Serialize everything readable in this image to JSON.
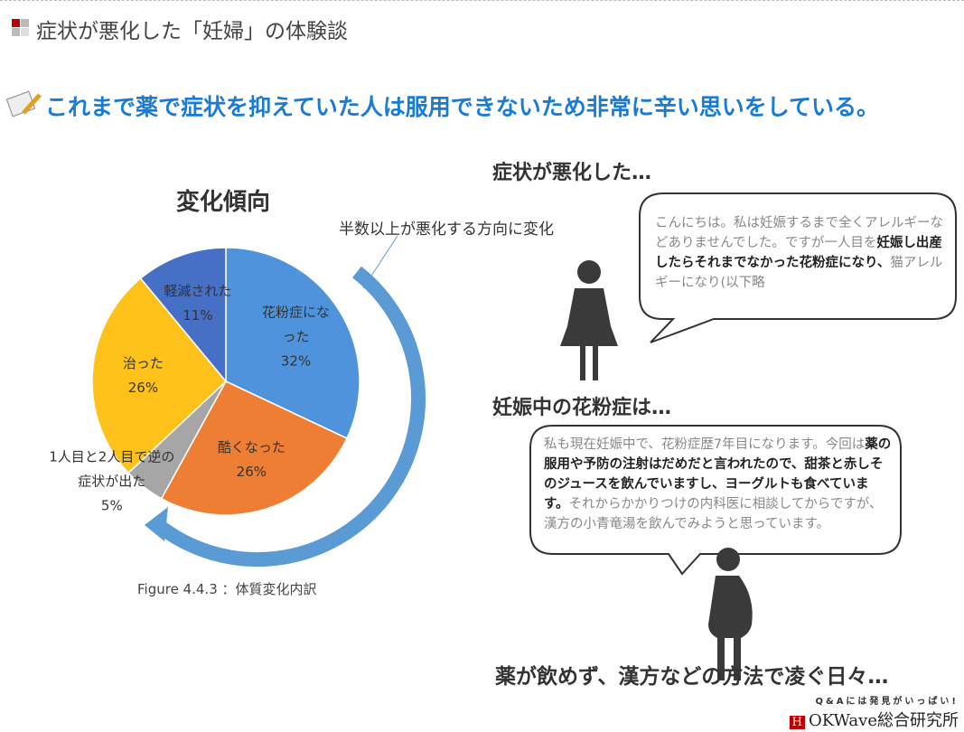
{
  "header": {
    "title": "症状が悪化した「妊婦」の体験談"
  },
  "headline": "これまで薬で症状を抑えていた人は服用できないため非常に辛い思いをしている。",
  "chart_data": {
    "type": "pie",
    "title": "変化傾向",
    "categories": [
      "花粉症になった",
      "酷くなった",
      "1人目と2人目で逆の症状が出た",
      "治った",
      "軽減された"
    ],
    "values": [
      32,
      26,
      5,
      26,
      11
    ],
    "value_labels": [
      "32%",
      "26%",
      "5%",
      "26%",
      "11%"
    ],
    "colors": [
      "#4f93dc",
      "#ee7e34",
      "#a6a6a6",
      "#ffc21a",
      "#4670c6"
    ],
    "annotation": "半数以上が悪化する方向に変化",
    "caption": "Figure 4.4.3 ：体質変化内訳"
  },
  "sections": [
    {
      "heading": "症状が悪化した…",
      "segments": [
        {
          "text": "こんにちは。私は妊娠するまで全くアレルギーなどありませんでした。ですが一人目を",
          "bold": false
        },
        {
          "text": "妊娠し出産したらそれまでなかった花粉症になり、",
          "bold": true
        },
        {
          "text": "猫アレルギーになり(以下略",
          "bold": false
        }
      ]
    },
    {
      "heading": "妊娠中の花粉症は…",
      "segments": [
        {
          "text": "私も現在妊娠中で、花粉症歴7年目になります。今回は",
          "bold": false
        },
        {
          "text": "薬の服用や予防の注射はだめだと言われたので、甜茶と赤しそのジュースを飲んでいますし、ヨーグルトも食べています。",
          "bold": true
        },
        {
          "text": "それからかかりつけの内科医に相談してからですが、漢方の小青竜湯を飲んでみようと思っています。",
          "bold": false
        }
      ]
    }
  ],
  "footer": "薬が飲めず、漢方などの方法で凌ぐ日々…",
  "logo": {
    "tagline": "Q&Aには発見がいっぱい!",
    "name": "OKWave総合研究所"
  }
}
